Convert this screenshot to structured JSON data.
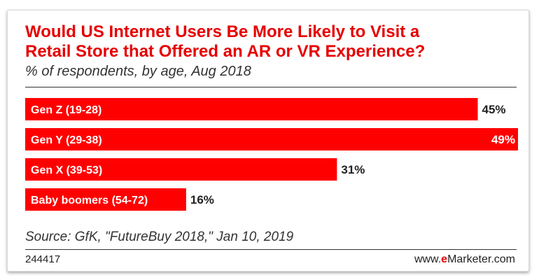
{
  "title_line1": "Would US Internet Users Be More Likely to Visit a",
  "title_line2": "Retail Store that Offered an AR or VR Experience?",
  "subtitle": "% of respondents, by age, Aug 2018",
  "source": "Source: GfK, \"FutureBuy 2018,\" Jan 10, 2019",
  "chart_id": "244417",
  "brand": {
    "prefix": "www.",
    "accent": "e",
    "rest": "Marketer.com"
  },
  "colors": {
    "bar": "#ff0000",
    "title": "#e60000"
  },
  "chart_data": {
    "type": "bar",
    "orientation": "horizontal",
    "categories": [
      "Gen Z (19-28)",
      "Gen Y (29-38)",
      "Gen X (39-53)",
      "Baby boomers (54-72)"
    ],
    "values": [
      45,
      49,
      31,
      16
    ],
    "value_labels": [
      "45%",
      "49%",
      "31%",
      "16%"
    ],
    "title": "Would US Internet Users Be More Likely to Visit a Retail Store that Offered an AR or VR Experience?",
    "subtitle": "% of respondents, by age, Aug 2018",
    "xlim": [
      0,
      49
    ],
    "grid": false,
    "legend": "none"
  }
}
